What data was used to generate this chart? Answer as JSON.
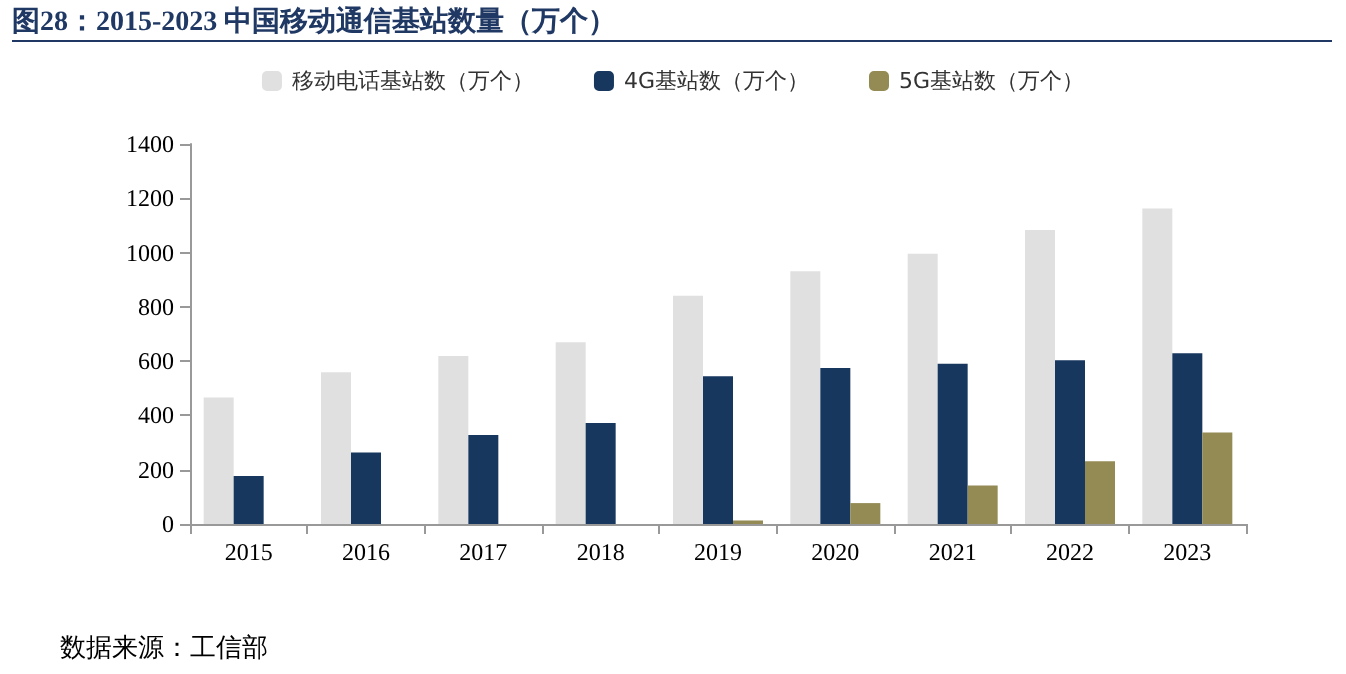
{
  "chart_data": {
    "type": "bar",
    "title": "图28：2015-2023 中国移动通信基站数量（万个）",
    "categories": [
      "2015",
      "2016",
      "2017",
      "2018",
      "2019",
      "2020",
      "2021",
      "2022",
      "2023"
    ],
    "series": [
      {
        "name": "移动电话基站数（万个）",
        "color": "#e0e0e0",
        "values": [
          466,
          559,
          619,
          670,
          841,
          931,
          996,
          1083,
          1162
        ]
      },
      {
        "name": "4G基站数（万个）",
        "color": "#17375e",
        "values": [
          177,
          263,
          328,
          372,
          544,
          575,
          590,
          603,
          629
        ]
      },
      {
        "name": "5G基站数（万个）",
        "color": "#948a54",
        "values": [
          null,
          null,
          null,
          null,
          13,
          77,
          142,
          231,
          337
        ]
      }
    ],
    "ylim": [
      0,
      1400
    ],
    "yticks": [
      0,
      200,
      400,
      600,
      800,
      1000,
      1200,
      1400
    ],
    "grid": false,
    "legend": "top",
    "annotations": [
      "数据来源：工信部"
    ]
  }
}
